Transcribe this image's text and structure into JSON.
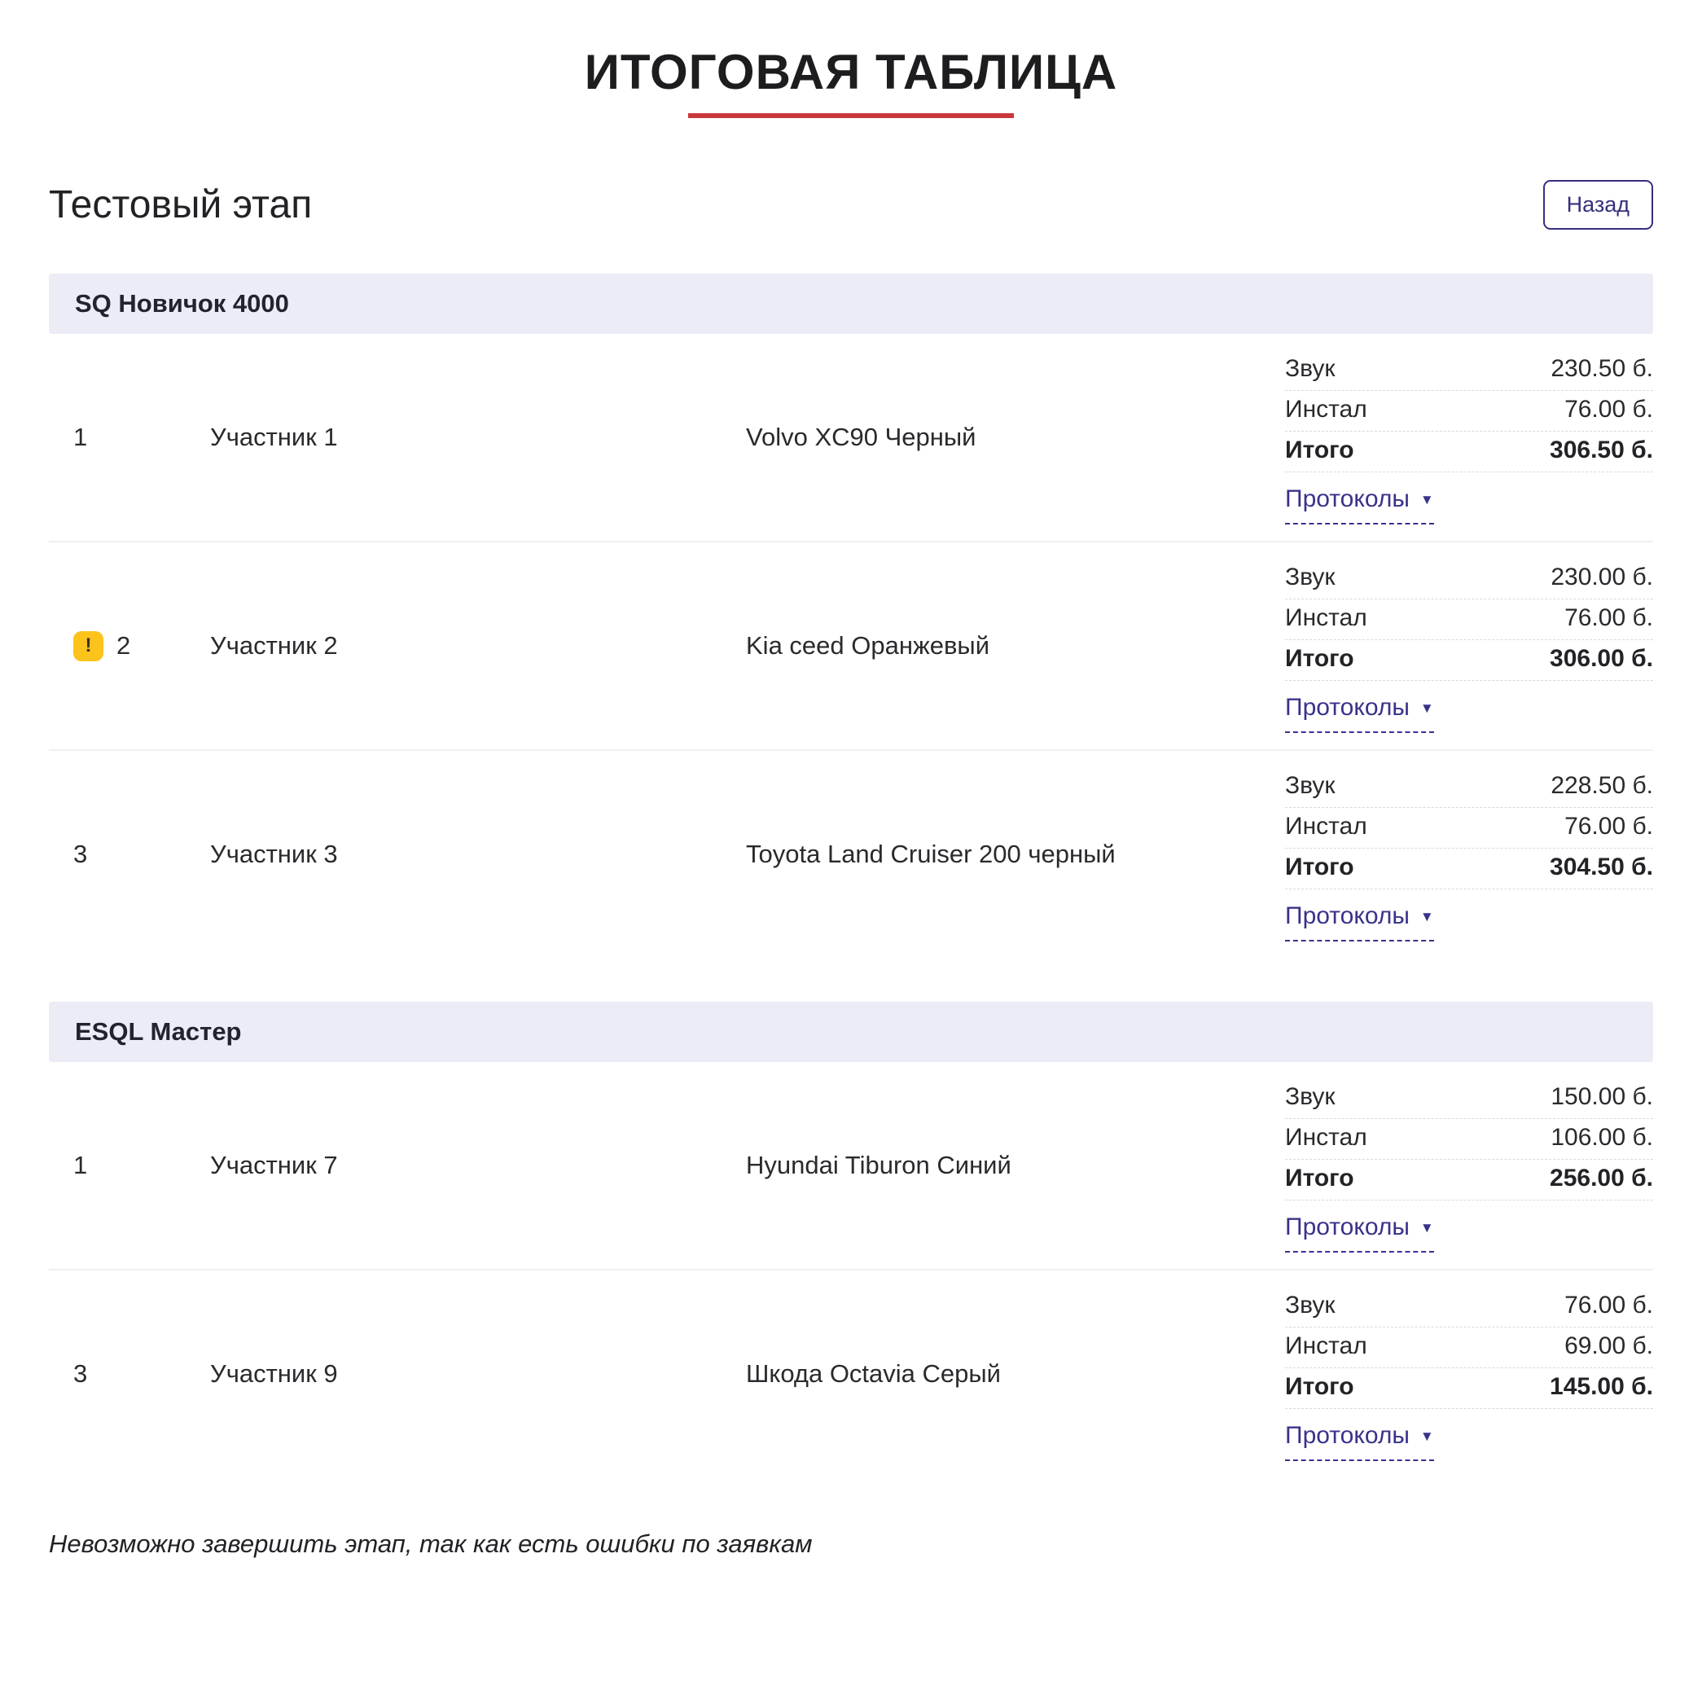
{
  "page": {
    "title": "ИТОГОВАЯ ТАБЛИЦА",
    "stage_title": "Тестовый этап",
    "back_button_label": "Назад",
    "footer_note": "Невозможно завершить этап, так как есть ошибки по заявкам"
  },
  "labels": {
    "sound": "Звук",
    "install": "Инстал",
    "total": "Итого",
    "protocols": "Протоколы",
    "warning_char": "!"
  },
  "colors": {
    "accent_red": "#c9383d",
    "link_indigo": "#39328b",
    "button_indigo": "#35307c",
    "warning_yellow": "#fbc31c",
    "section_band_bg": "#ececf6"
  },
  "sections": [
    {
      "name": "SQ Новичок 4000",
      "rows": [
        {
          "rank": "1",
          "warning": false,
          "participant": "Участник 1",
          "car": "Volvo XC90 Черный",
          "sound": "230.50 б.",
          "install": "76.00 б.",
          "total": "306.50 б."
        },
        {
          "rank": "2",
          "warning": true,
          "participant": "Участник 2",
          "car": "Kia ceed Оранжевый",
          "sound": "230.00 б.",
          "install": "76.00 б.",
          "total": "306.00 б."
        },
        {
          "rank": "3",
          "warning": false,
          "participant": "Участник 3",
          "car": "Toyota Land Cruiser 200 черный",
          "sound": "228.50 б.",
          "install": "76.00 б.",
          "total": "304.50 б."
        }
      ]
    },
    {
      "name": "ESQL Мастер",
      "rows": [
        {
          "rank": "1",
          "warning": false,
          "participant": "Участник 7",
          "car": "Hyundai Tiburon Синий",
          "sound": "150.00 б.",
          "install": "106.00 б.",
          "total": "256.00 б."
        },
        {
          "rank": "3",
          "warning": false,
          "participant": "Участник 9",
          "car": "Шкода Octavia Серый",
          "sound": "76.00 б.",
          "install": "69.00 б.",
          "total": "145.00 б."
        }
      ]
    }
  ]
}
